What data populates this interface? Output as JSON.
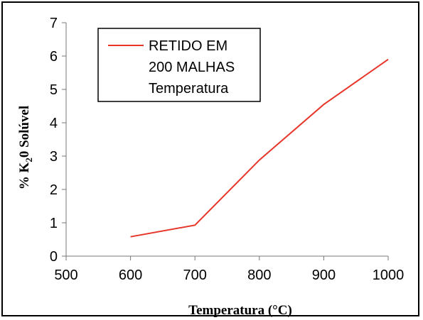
{
  "chart_data": {
    "type": "line",
    "xlabel": "Temperatura (°C)",
    "ylabel_parts": [
      "% K",
      "2",
      "0 Solúvel"
    ],
    "x": [
      600,
      700,
      800,
      900,
      1000
    ],
    "series": [
      {
        "name_lines": [
          "RETIDO EM",
          "200 MALHAS",
          "Temperatura"
        ],
        "values": [
          0.58,
          0.93,
          2.88,
          4.55,
          5.9
        ],
        "color": "#e8352a"
      }
    ],
    "xlim": [
      500,
      1000
    ],
    "ylim": [
      0,
      7
    ],
    "xticks": [
      500,
      600,
      700,
      800,
      900,
      1000
    ],
    "yticks": [
      0,
      1,
      2,
      3,
      4,
      5,
      6,
      7
    ],
    "grid": false,
    "legend_position": "top-left"
  }
}
